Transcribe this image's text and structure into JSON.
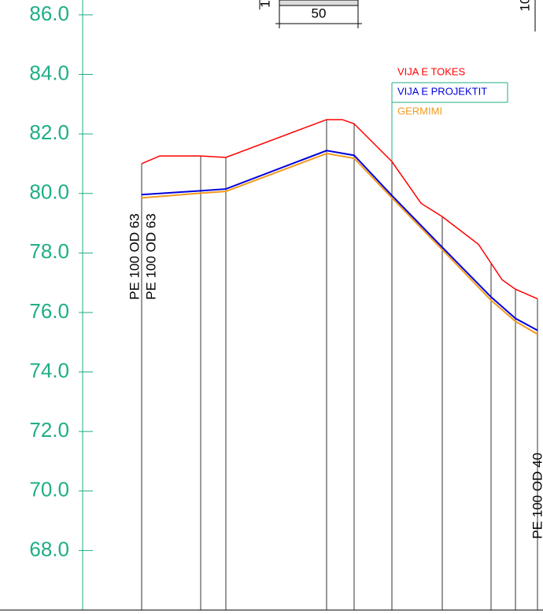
{
  "chart_data": {
    "type": "line",
    "yticks": [
      {
        "value": 68,
        "label": "68.0"
      },
      {
        "value": 70,
        "label": "70.0"
      },
      {
        "value": 72,
        "label": "72.0"
      },
      {
        "value": 74,
        "label": "74.0"
      },
      {
        "value": 76,
        "label": "76.0"
      },
      {
        "value": 78,
        "label": "78.0"
      },
      {
        "value": 80,
        "label": "80.0"
      },
      {
        "value": 82,
        "label": "82.0"
      },
      {
        "value": 84,
        "label": "84.0"
      },
      {
        "value": 86,
        "label": "86.0"
      }
    ],
    "ylim": [
      66,
      86.5
    ],
    "xlim": [
      0,
      690
    ],
    "series": [
      {
        "name": "VIJA E TOKES",
        "color": "#ff0000",
        "x": [
          180,
          203,
          255,
          287,
          415,
          435,
          450,
          498,
          535,
          562,
          608,
          638,
          655,
          683
        ],
        "values": [
          81.0,
          81.26,
          81.26,
          81.21,
          82.48,
          82.48,
          82.34,
          81.07,
          79.67,
          79.22,
          78.29,
          77.1,
          76.78,
          76.46
        ]
      },
      {
        "name": "VIJA E PROJEKTIT",
        "color": "#0000dd",
        "x": [
          180,
          255,
          287,
          415,
          450,
          498,
          562,
          624,
          655,
          683
        ],
        "values": [
          79.96,
          80.09,
          80.15,
          81.44,
          81.28,
          79.93,
          78.19,
          76.52,
          75.8,
          75.4
        ]
      },
      {
        "name": "GERMIMI",
        "color": "#f39a1f",
        "x": [
          180,
          255,
          287,
          415,
          450,
          498,
          562,
          624,
          655,
          683
        ],
        "values": [
          79.85,
          80.01,
          80.07,
          81.34,
          81.18,
          79.85,
          78.11,
          76.41,
          75.7,
          75.27
        ]
      }
    ],
    "annotations": [
      "PE 100 OD 63",
      "PE 100 OD 63",
      "PE 100 OD 40",
      "50",
      "1",
      "10"
    ]
  }
}
